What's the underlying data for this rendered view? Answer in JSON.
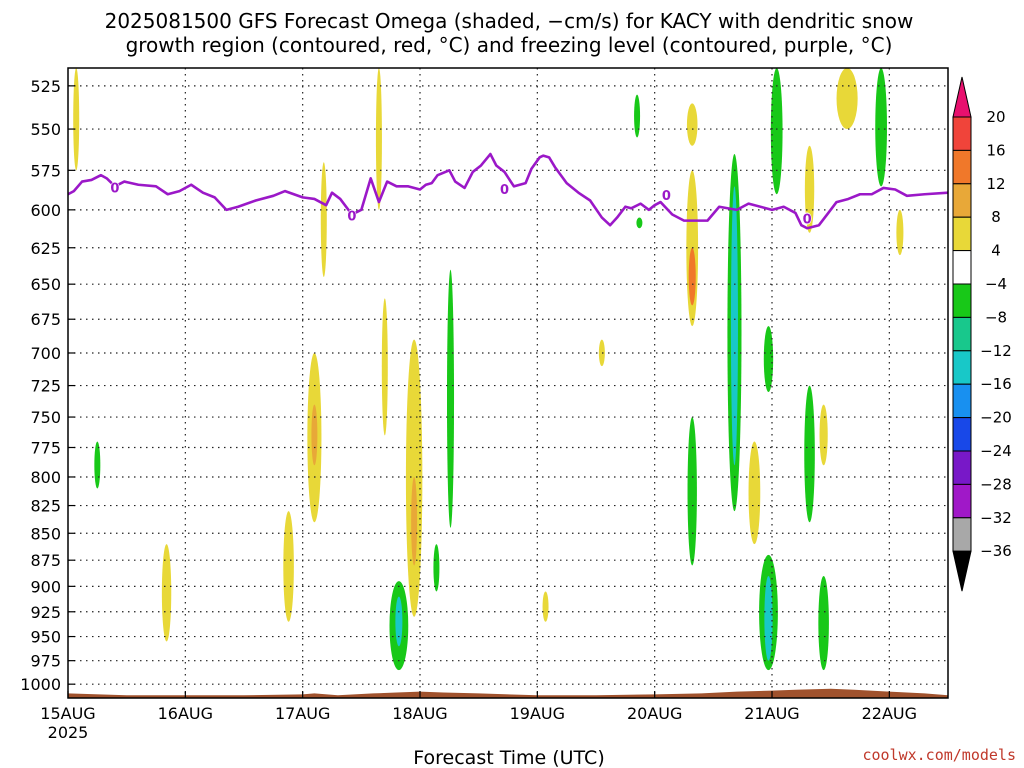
{
  "title_lines": [
    "2025081500 GFS Forecast Omega (shaded, −cm/s) for KACY with dendritic snow",
    "growth region (contoured, red, °C) and freezing level (contoured, purple, °C)"
  ],
  "credit": "coolwx.com/models",
  "chart_data": {
    "type": "heatmap",
    "title": "2025081500 GFS Forecast Omega (shaded, −cm/s) for KACY with dendritic snow growth region (contoured, red, °C) and freezing level (contoured, purple, °C)",
    "xlabel": "Forecast Time (UTC)",
    "ylabel": "",
    "x_ticks": [
      {
        "label": "15AUG",
        "sublabel": "2025",
        "day": 0
      },
      {
        "label": "16AUG",
        "day": 1
      },
      {
        "label": "17AUG",
        "day": 2
      },
      {
        "label": "18AUG",
        "day": 3
      },
      {
        "label": "19AUG",
        "day": 4
      },
      {
        "label": "20AUG",
        "day": 5
      },
      {
        "label": "21AUG",
        "day": 6
      },
      {
        "label": "22AUG",
        "day": 7
      }
    ],
    "xlim_days": [
      0,
      7.5
    ],
    "y_ticks": [
      525,
      550,
      575,
      600,
      625,
      650,
      675,
      700,
      725,
      750,
      775,
      800,
      825,
      850,
      875,
      900,
      925,
      950,
      975,
      1000
    ],
    "ylim_hpa": [
      515,
      1015
    ],
    "y_scale": "log-pressure",
    "grid": "dotted",
    "colorbar": {
      "levels": [
        "20",
        "16",
        "12",
        "8",
        "4",
        "−4",
        "−8",
        "−12",
        "−16",
        "−20",
        "−24",
        "−28",
        "−32",
        "−36"
      ],
      "colors": [
        "#e8106e",
        "#f0443a",
        "#f0782a",
        "#e8a838",
        "#e8d838",
        "#ffffff",
        "#18c818",
        "#18c88c",
        "#18c8c8",
        "#1890f0",
        "#1848e8",
        "#7818c8",
        "#a018c8",
        "#a8a8a8",
        "#000000"
      ]
    },
    "freezing_level_hpa": [
      [
        0.0,
        590
      ],
      [
        0.05,
        588
      ],
      [
        0.12,
        582
      ],
      [
        0.2,
        581
      ],
      [
        0.28,
        578
      ],
      [
        0.33,
        580
      ],
      [
        0.4,
        585
      ],
      [
        0.48,
        582
      ],
      [
        0.6,
        584
      ],
      [
        0.75,
        585
      ],
      [
        0.85,
        590
      ],
      [
        0.95,
        588
      ],
      [
        1.05,
        584
      ],
      [
        1.15,
        589
      ],
      [
        1.25,
        592
      ],
      [
        1.35,
        600
      ],
      [
        1.45,
        598
      ],
      [
        1.6,
        594
      ],
      [
        1.75,
        591
      ],
      [
        1.85,
        588
      ],
      [
        2.0,
        592
      ],
      [
        2.1,
        593
      ],
      [
        2.2,
        597
      ],
      [
        2.25,
        589
      ],
      [
        2.32,
        593
      ],
      [
        2.42,
        603
      ],
      [
        2.5,
        600
      ],
      [
        2.58,
        580
      ],
      [
        2.65,
        595
      ],
      [
        2.72,
        582
      ],
      [
        2.8,
        585
      ],
      [
        2.9,
        585
      ],
      [
        3.0,
        587
      ],
      [
        3.05,
        584
      ],
      [
        3.1,
        583
      ],
      [
        3.15,
        578
      ],
      [
        3.25,
        575
      ],
      [
        3.3,
        582
      ],
      [
        3.38,
        586
      ],
      [
        3.45,
        576
      ],
      [
        3.52,
        572
      ],
      [
        3.6,
        565
      ],
      [
        3.65,
        572
      ],
      [
        3.72,
        576
      ],
      [
        3.8,
        585
      ],
      [
        3.9,
        583
      ],
      [
        3.95,
        574
      ],
      [
        4.02,
        567
      ],
      [
        4.05,
        566
      ],
      [
        4.1,
        567
      ],
      [
        4.15,
        573
      ],
      [
        4.25,
        583
      ],
      [
        4.35,
        589
      ],
      [
        4.45,
        594
      ],
      [
        4.55,
        605
      ],
      [
        4.62,
        610
      ],
      [
        4.68,
        605
      ],
      [
        4.75,
        598
      ],
      [
        4.8,
        599
      ],
      [
        4.88,
        596
      ],
      [
        4.95,
        600
      ],
      [
        5.0,
        597
      ],
      [
        5.05,
        595
      ],
      [
        5.15,
        603
      ],
      [
        5.25,
        607
      ],
      [
        5.45,
        607
      ],
      [
        5.55,
        598
      ],
      [
        5.7,
        600
      ],
      [
        5.8,
        596
      ],
      [
        6.0,
        600
      ],
      [
        6.1,
        598
      ],
      [
        6.2,
        602
      ],
      [
        6.25,
        610
      ],
      [
        6.3,
        612
      ],
      [
        6.4,
        610
      ],
      [
        6.48,
        602
      ],
      [
        6.55,
        595
      ],
      [
        6.65,
        593
      ],
      [
        6.75,
        590
      ],
      [
        6.85,
        590
      ],
      [
        6.95,
        586
      ],
      [
        7.05,
        587
      ],
      [
        7.15,
        591
      ],
      [
        7.3,
        590
      ],
      [
        7.5,
        589
      ]
    ],
    "freezing_level_label": "0",
    "freezing_level_label_points": [
      [
        0.4,
        585
      ],
      [
        2.42,
        603
      ],
      [
        3.72,
        586
      ],
      [
        5.1,
        590
      ],
      [
        6.3,
        605
      ]
    ],
    "omega_regions": [
      {
        "t": 0.07,
        "p_top": 515,
        "p_bot": 575,
        "w": 0.04,
        "value": 4
      },
      {
        "t": 0.25,
        "p_top": 770,
        "p_bot": 810,
        "w": 0.02,
        "value": -4
      },
      {
        "t": 0.84,
        "p_top": 860,
        "p_bot": 955,
        "w": 0.08,
        "value": 4
      },
      {
        "t": 1.88,
        "p_top": 830,
        "p_bot": 935,
        "w": 0.09,
        "value": 4
      },
      {
        "t": 2.1,
        "p_top": 700,
        "p_bot": 840,
        "w": 0.12,
        "value": 4
      },
      {
        "t": 2.1,
        "p_top": 740,
        "p_bot": 790,
        "w": 0.05,
        "value": 8
      },
      {
        "t": 2.18,
        "p_top": 570,
        "p_bot": 645,
        "w": 0.03,
        "value": 4
      },
      {
        "t": 2.65,
        "p_top": 515,
        "p_bot": 600,
        "w": 0.03,
        "value": 4
      },
      {
        "t": 2.7,
        "p_top": 660,
        "p_bot": 765,
        "w": 0.03,
        "value": 4
      },
      {
        "t": 2.82,
        "p_top": 895,
        "p_bot": 985,
        "w": 0.16,
        "value": -4
      },
      {
        "t": 2.82,
        "p_top": 910,
        "p_bot": 960,
        "w": 0.06,
        "value": -12
      },
      {
        "t": 2.95,
        "p_top": 690,
        "p_bot": 930,
        "w": 0.14,
        "value": 4
      },
      {
        "t": 2.95,
        "p_top": 800,
        "p_bot": 880,
        "w": 0.05,
        "value": 8
      },
      {
        "t": 3.26,
        "p_top": 640,
        "p_bot": 845,
        "w": 0.06,
        "value": -4
      },
      {
        "t": 3.14,
        "p_top": 860,
        "p_bot": 905,
        "w": 0.02,
        "value": -4
      },
      {
        "t": 4.07,
        "p_top": 905,
        "p_bot": 935,
        "w": 0.02,
        "value": 4
      },
      {
        "t": 4.55,
        "p_top": 690,
        "p_bot": 710,
        "w": 0.02,
        "value": 4
      },
      {
        "t": 4.85,
        "p_top": 530,
        "p_bot": 555,
        "w": 0.03,
        "value": -4
      },
      {
        "t": 4.87,
        "p_top": 605,
        "p_bot": 612,
        "w": 0.03,
        "value": -4
      },
      {
        "t": 5.32,
        "p_top": 535,
        "p_bot": 560,
        "w": 0.09,
        "value": 4
      },
      {
        "t": 5.32,
        "p_top": 575,
        "p_bot": 680,
        "w": 0.1,
        "value": 4
      },
      {
        "t": 5.32,
        "p_top": 625,
        "p_bot": 665,
        "w": 0.06,
        "value": 12
      },
      {
        "t": 5.32,
        "p_top": 750,
        "p_bot": 880,
        "w": 0.08,
        "value": -4
      },
      {
        "t": 5.68,
        "p_top": 565,
        "p_bot": 830,
        "w": 0.12,
        "value": -4
      },
      {
        "t": 5.68,
        "p_top": 585,
        "p_bot": 790,
        "w": 0.06,
        "value": -12
      },
      {
        "t": 5.85,
        "p_top": 770,
        "p_bot": 860,
        "w": 0.1,
        "value": 4
      },
      {
        "t": 5.97,
        "p_top": 680,
        "p_bot": 730,
        "w": 0.08,
        "value": -4
      },
      {
        "t": 5.97,
        "p_top": 870,
        "p_bot": 985,
        "w": 0.16,
        "value": -4
      },
      {
        "t": 5.97,
        "p_top": 890,
        "p_bot": 975,
        "w": 0.07,
        "value": -12
      },
      {
        "t": 6.04,
        "p_top": 515,
        "p_bot": 590,
        "w": 0.1,
        "value": -4
      },
      {
        "t": 6.32,
        "p_top": 560,
        "p_bot": 615,
        "w": 0.08,
        "value": 4
      },
      {
        "t": 6.32,
        "p_top": 725,
        "p_bot": 840,
        "w": 0.09,
        "value": -4
      },
      {
        "t": 6.44,
        "p_top": 740,
        "p_bot": 790,
        "w": 0.07,
        "value": 4
      },
      {
        "t": 6.44,
        "p_top": 890,
        "p_bot": 985,
        "w": 0.09,
        "value": -4
      },
      {
        "t": 6.64,
        "p_top": 515,
        "p_bot": 550,
        "w": 0.18,
        "value": 4
      },
      {
        "t": 6.93,
        "p_top": 515,
        "p_bot": 585,
        "w": 0.1,
        "value": -4
      },
      {
        "t": 7.09,
        "p_top": 600,
        "p_bot": 630,
        "w": 0.06,
        "value": 4
      }
    ],
    "terrain_hpa": [
      [
        0.0,
        1010
      ],
      [
        0.5,
        1012
      ],
      [
        1.0,
        1012
      ],
      [
        1.5,
        1012
      ],
      [
        2.0,
        1011
      ],
      [
        2.1,
        1010
      ],
      [
        2.3,
        1012
      ],
      [
        2.6,
        1010
      ],
      [
        2.8,
        1009
      ],
      [
        3.0,
        1008
      ],
      [
        3.2,
        1009
      ],
      [
        3.5,
        1010
      ],
      [
        4.0,
        1012
      ],
      [
        4.5,
        1012
      ],
      [
        5.0,
        1011
      ],
      [
        5.4,
        1010
      ],
      [
        5.7,
        1008
      ],
      [
        6.0,
        1007
      ],
      [
        6.2,
        1006
      ],
      [
        6.5,
        1005
      ],
      [
        6.7,
        1006
      ],
      [
        7.0,
        1008
      ],
      [
        7.3,
        1010
      ],
      [
        7.5,
        1012
      ]
    ],
    "terrain_color": "#a0522d",
    "freezing_color": "#9b18c8"
  }
}
